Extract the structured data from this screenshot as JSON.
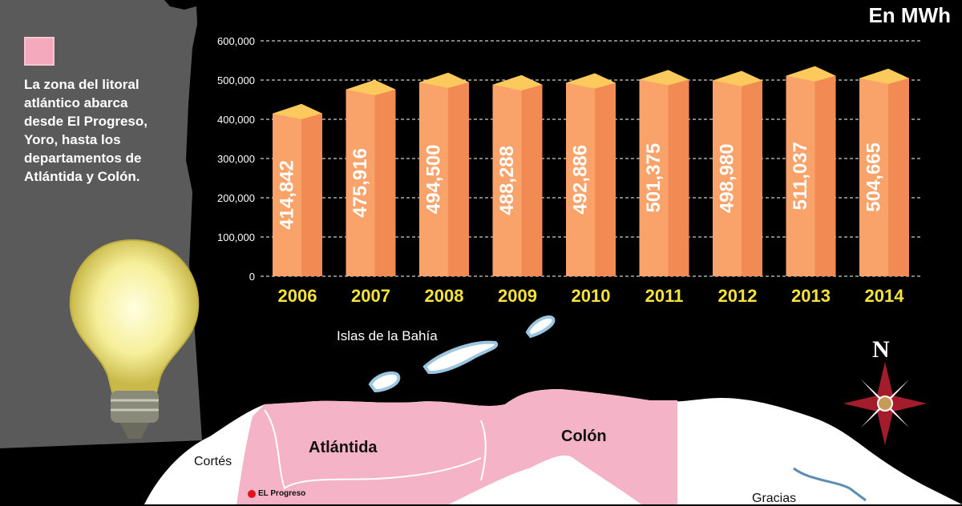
{
  "unit_label": "En MWh",
  "legend": {
    "lines": [
      "La zona del litoral",
      "atlántico abarca",
      "desde El Progreso,",
      "Yoro, hasta los",
      "departamentos de",
      "Atlántida y Colón."
    ]
  },
  "map": {
    "islands_label": "Islas de la Bahía",
    "atlantida_label": "Atlántida",
    "colon_label": "Colón",
    "cortes_label": "Cortés",
    "progreso_label": "EL Progreso",
    "gracias_label": "Gracias",
    "compass_label": "N"
  },
  "colors": {
    "bar_front": "#f9a26a",
    "bar_side": "#f28a54",
    "bar_top": "#fcc95c",
    "year_label": "#f5e23a",
    "region_pink": "#f4b3c6",
    "land": "#ffffff"
  },
  "chart_data": {
    "type": "bar",
    "categories": [
      "2006",
      "2007",
      "2008",
      "2009",
      "2010",
      "2011",
      "2012",
      "2013",
      "2014"
    ],
    "values": [
      414842,
      475916,
      494500,
      488288,
      492886,
      501375,
      498980,
      511037,
      504665
    ],
    "value_labels": [
      "414,842",
      "475,916",
      "494,500",
      "488,288",
      "492,886",
      "501,375",
      "498,980",
      "511,037",
      "504,665"
    ],
    "ylim": [
      0,
      600000
    ],
    "yticks": [
      0,
      100000,
      200000,
      300000,
      400000,
      500000,
      600000
    ],
    "ytick_labels": [
      "0",
      "100,000",
      "200,000",
      "300,000",
      "400,000",
      "500,000",
      "600,000"
    ],
    "grid": true
  }
}
